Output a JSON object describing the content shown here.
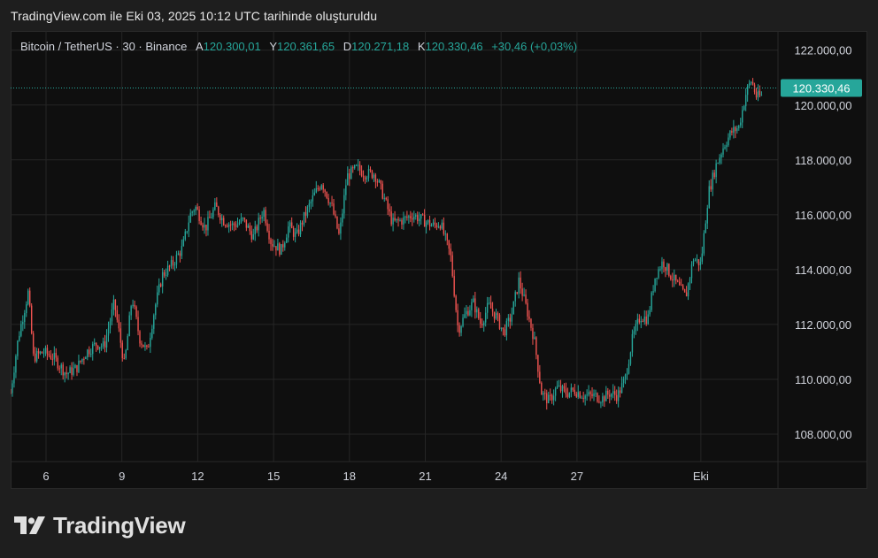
{
  "header": {
    "title": "TradingView.com ile Eki 03, 2025 10:12 UTC tarihinde oluşturuldu"
  },
  "legend": {
    "symbol": "Bitcoin / TetherUS · 30 · Binance",
    "open_label": "A",
    "open": "120.300,01",
    "high_label": "Y",
    "high": "120.361,65",
    "low_label": "D",
    "low": "120.271,18",
    "close_label": "K",
    "close": "120.330,46",
    "change": "+30,46 (+0,03%)"
  },
  "price_tag": "120.330,46",
  "logo": {
    "text": "TradingView"
  },
  "colors": {
    "up": "#26a69a",
    "down": "#ef5350",
    "background": "#0f0f0f",
    "grid": "#262626",
    "tag": "#26a69a"
  },
  "chart_data": {
    "type": "candlestick",
    "symbol": "BTCUSDT",
    "interval": "30",
    "exchange": "Binance",
    "ylim": [
      107000,
      122700
    ],
    "y_ticks": [
      108000,
      110000,
      112000,
      114000,
      116000,
      118000,
      120000,
      122000
    ],
    "y_tick_labels": [
      "108.000,00",
      "110.000,00",
      "112.000,00",
      "114.000,00",
      "116.000,00",
      "118.000,00",
      "120.000,00",
      "122.000,00"
    ],
    "x_range_days": [
      4.6,
      12.35
    ],
    "x_ticks": [
      6,
      9,
      12,
      15,
      18,
      21,
      24,
      27,
      31.9
    ],
    "x_tick_labels": [
      "6",
      "9",
      "12",
      "15",
      "18",
      "21",
      "24",
      "27",
      "Eki"
    ],
    "last_price": 120330.46,
    "grid": true,
    "price_path": [
      [
        4.6,
        109500
      ],
      [
        4.9,
        111500
      ],
      [
        5.3,
        113200
      ],
      [
        5.5,
        110800
      ],
      [
        5.9,
        111000
      ],
      [
        6.3,
        110800
      ],
      [
        6.8,
        110200
      ],
      [
        7.2,
        110400
      ],
      [
        7.6,
        111000
      ],
      [
        8.0,
        111300
      ],
      [
        8.3,
        111200
      ],
      [
        8.7,
        112800
      ],
      [
        9.1,
        110500
      ],
      [
        9.4,
        113000
      ],
      [
        9.7,
        111500
      ],
      [
        10.0,
        111000
      ],
      [
        10.3,
        112600
      ],
      [
        10.6,
        113800
      ],
      [
        11.0,
        114200
      ],
      [
        11.4,
        114800
      ],
      [
        11.7,
        116000
      ],
      [
        11.9,
        116300
      ],
      [
        12.3,
        115500
      ],
      [
        12.7,
        116300
      ],
      [
        13.0,
        115800
      ],
      [
        13.4,
        115600
      ],
      [
        13.8,
        115800
      ],
      [
        14.2,
        115200
      ],
      [
        14.6,
        116200
      ],
      [
        14.9,
        115000
      ],
      [
        15.3,
        114700
      ],
      [
        15.6,
        115600
      ],
      [
        15.9,
        115200
      ],
      [
        16.2,
        115900
      ],
      [
        16.6,
        116700
      ],
      [
        16.9,
        117200
      ],
      [
        17.3,
        116300
      ],
      [
        17.6,
        115200
      ],
      [
        17.9,
        117400
      ],
      [
        18.3,
        117700
      ],
      [
        18.6,
        117500
      ],
      [
        19.0,
        117500
      ],
      [
        19.3,
        116800
      ],
      [
        19.7,
        115700
      ],
      [
        20.1,
        115800
      ],
      [
        20.5,
        116000
      ],
      [
        20.9,
        115800
      ],
      [
        21.3,
        115600
      ],
      [
        21.6,
        115700
      ],
      [
        22.0,
        114500
      ],
      [
        22.3,
        111800
      ],
      [
        22.6,
        112400
      ],
      [
        22.9,
        112800
      ],
      [
        23.2,
        112000
      ],
      [
        23.5,
        112700
      ],
      [
        23.8,
        112300
      ],
      [
        24.1,
        111700
      ],
      [
        24.4,
        112300
      ],
      [
        24.7,
        113600
      ],
      [
        25.0,
        112600
      ],
      [
        25.3,
        111500
      ],
      [
        25.6,
        109500
      ],
      [
        25.9,
        109200
      ],
      [
        26.2,
        109700
      ],
      [
        26.6,
        109500
      ],
      [
        26.9,
        109600
      ],
      [
        27.3,
        109400
      ],
      [
        27.7,
        109400
      ],
      [
        28.0,
        109300
      ],
      [
        28.3,
        109500
      ],
      [
        28.6,
        109400
      ],
      [
        28.9,
        110000
      ],
      [
        29.2,
        111500
      ],
      [
        29.5,
        112300
      ],
      [
        29.8,
        112200
      ],
      [
        30.1,
        113800
      ],
      [
        30.4,
        114300
      ],
      [
        30.7,
        113800
      ],
      [
        31.0,
        113400
      ],
      [
        31.3,
        113000
      ],
      [
        31.6,
        114400
      ],
      [
        31.9,
        114200
      ],
      [
        32.2,
        116800
      ],
      [
        32.5,
        117800
      ],
      [
        32.8,
        118500
      ],
      [
        33.1,
        119000
      ],
      [
        33.4,
        119200
      ],
      [
        33.7,
        120500
      ],
      [
        33.9,
        120900
      ],
      [
        34.1,
        120300
      ],
      [
        34.3,
        120330
      ]
    ]
  }
}
